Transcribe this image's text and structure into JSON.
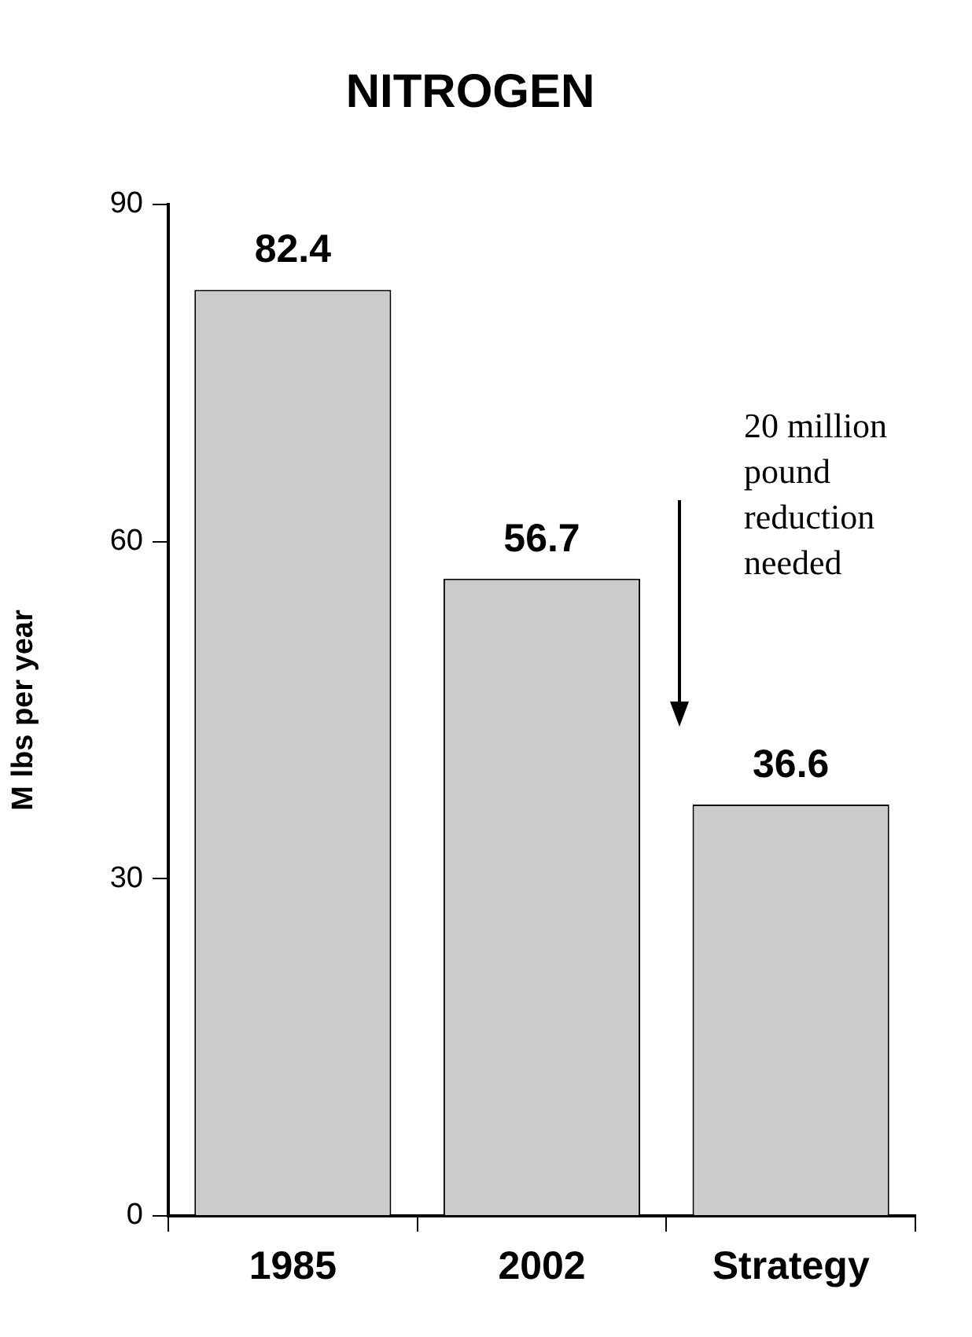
{
  "chart_data": {
    "type": "bar",
    "title": "NITROGEN",
    "ylabel": "M lbs per year",
    "categories": [
      "1985",
      "2002",
      "Strategy"
    ],
    "values": [
      82.4,
      56.7,
      36.6
    ],
    "color": "#cbcbcb",
    "ylim": [
      0,
      90
    ],
    "yticks": [
      0,
      30,
      60,
      90
    ],
    "grid": false,
    "legend": false,
    "data_labels": true,
    "annotations": [
      "20 million pound reduction needed"
    ]
  }
}
